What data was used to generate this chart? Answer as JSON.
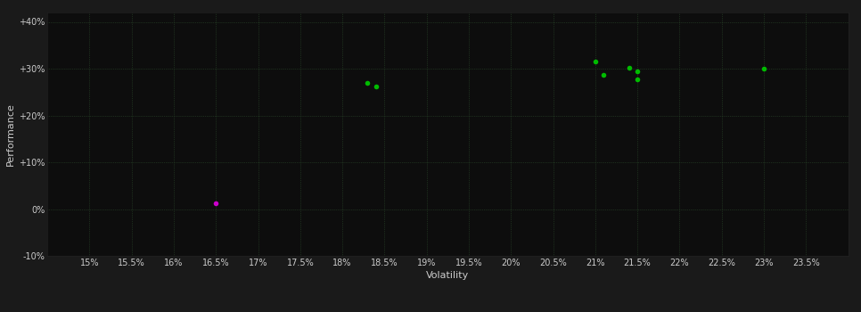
{
  "background_color": "#1a1a1a",
  "plot_bg_color": "#0d0d0d",
  "grid_color": "#2d4d2d",
  "text_color": "#cccccc",
  "xlabel": "Volatility",
  "ylabel": "Performance",
  "xlim": [
    0.145,
    0.24
  ],
  "ylim": [
    -0.1,
    0.42
  ],
  "xticks": [
    0.15,
    0.155,
    0.16,
    0.165,
    0.17,
    0.175,
    0.18,
    0.185,
    0.19,
    0.195,
    0.2,
    0.205,
    0.21,
    0.215,
    0.22,
    0.225,
    0.23,
    0.235
  ],
  "yticks": [
    -0.1,
    0.0,
    0.1,
    0.2,
    0.3,
    0.4
  ],
  "ytick_labels": [
    "-10%",
    "0%",
    "+10%",
    "+20%",
    "+30%",
    "+40%"
  ],
  "xtick_labels": [
    "15%",
    "15.5%",
    "16%",
    "16.5%",
    "17%",
    "17.5%",
    "18%",
    "18.5%",
    "19%",
    "19.5%",
    "20%",
    "20.5%",
    "21%",
    "21.5%",
    "22%",
    "22.5%",
    "23%",
    "23.5%"
  ],
  "green_points": [
    [
      0.183,
      0.27
    ],
    [
      0.184,
      0.262
    ],
    [
      0.21,
      0.315
    ],
    [
      0.211,
      0.287
    ],
    [
      0.214,
      0.302
    ],
    [
      0.215,
      0.295
    ],
    [
      0.215,
      0.278
    ],
    [
      0.23,
      0.3
    ]
  ],
  "magenta_points": [
    [
      0.165,
      0.012
    ]
  ],
  "green_color": "#00bb00",
  "magenta_color": "#cc00cc",
  "marker_size": 4,
  "tick_fontsize": 7,
  "label_fontsize": 8,
  "figsize": [
    9.66,
    3.5
  ],
  "dpi": 100
}
